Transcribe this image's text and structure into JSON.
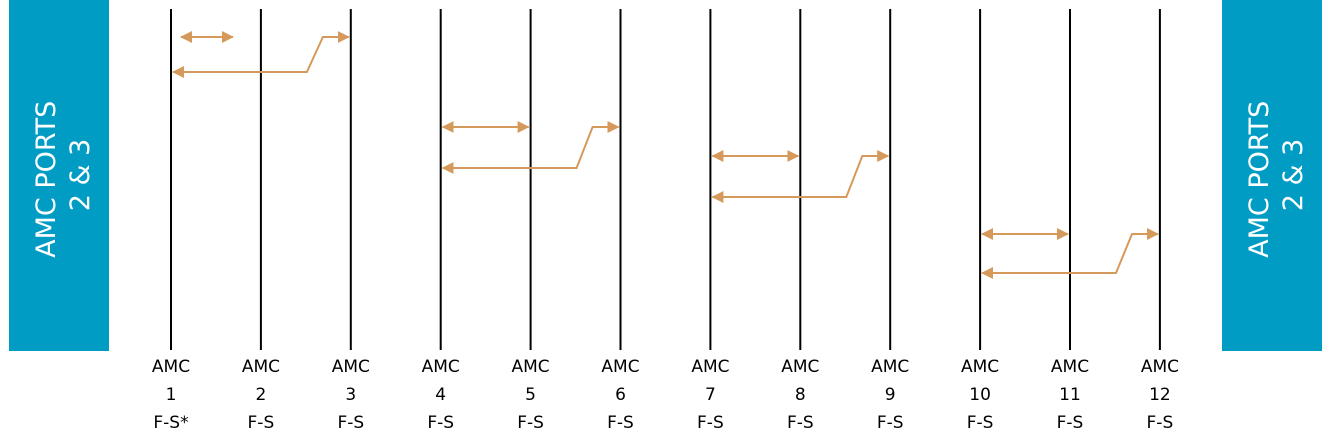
{
  "side_panels": {
    "left": {
      "line1": "AMC PORTS",
      "line2": "2 & 3"
    },
    "right": {
      "line1": "AMC PORTS",
      "line2": "2 & 3"
    }
  },
  "slots": [
    {
      "name": "AMC",
      "number": "1",
      "type": "F-S*"
    },
    {
      "name": "AMC",
      "number": "2",
      "type": "F-S"
    },
    {
      "name": "AMC",
      "number": "3",
      "type": "F-S"
    },
    {
      "name": "AMC",
      "number": "4",
      "type": "F-S"
    },
    {
      "name": "AMC",
      "number": "5",
      "type": "F-S"
    },
    {
      "name": "AMC",
      "number": "6",
      "type": "F-S"
    },
    {
      "name": "AMC",
      "number": "7",
      "type": "F-S"
    },
    {
      "name": "AMC",
      "number": "8",
      "type": "F-S"
    },
    {
      "name": "AMC",
      "number": "9",
      "type": "F-S"
    },
    {
      "name": "AMC",
      "number": "10",
      "type": "F-S"
    },
    {
      "name": "AMC",
      "number": "11",
      "type": "F-S"
    },
    {
      "name": "AMC",
      "number": "12",
      "type": "F-S"
    }
  ],
  "connections": [
    {
      "from": 1,
      "to": 2,
      "kind": "double-arrow"
    },
    {
      "from": 1,
      "to": 3,
      "kind": "arrow-jog"
    },
    {
      "from": 4,
      "to": 5,
      "kind": "double-arrow"
    },
    {
      "from": 4,
      "to": 6,
      "kind": "arrow-jog"
    },
    {
      "from": 7,
      "to": 8,
      "kind": "double-arrow"
    },
    {
      "from": 7,
      "to": 9,
      "kind": "arrow-jog"
    },
    {
      "from": 10,
      "to": 11,
      "kind": "double-arrow"
    },
    {
      "from": 10,
      "to": 12,
      "kind": "arrow-jog"
    }
  ],
  "colors": {
    "panel": "#009cc4",
    "connector": "#d59a5b",
    "line": "#000000"
  }
}
